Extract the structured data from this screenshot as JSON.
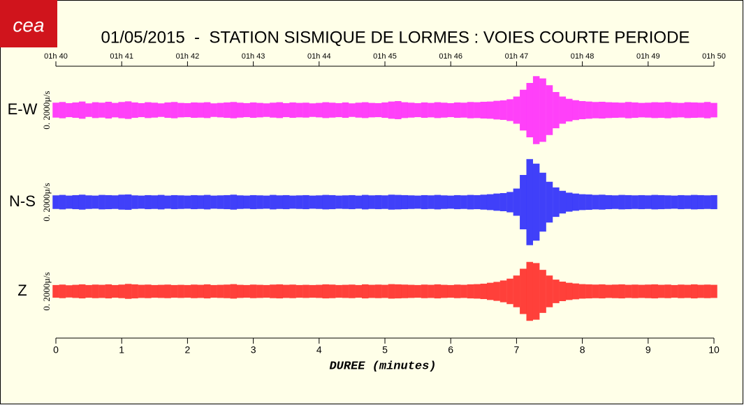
{
  "logo": "cea",
  "chart_data": {
    "type": "seismogram",
    "title": "01/05/2015  -  STATION SISMIQUE DE LORMES : VOIES COURTE PERIODE",
    "xlabel": "DUREE (minutes)",
    "scale_label": "0. 2000µ/s",
    "xlim": [
      0,
      10
    ],
    "xticks": [
      0,
      1,
      2,
      3,
      4,
      5,
      6,
      7,
      8,
      9,
      10
    ],
    "x2ticks": [
      {
        "value": 0,
        "label": "01h 40"
      },
      {
        "value": 1,
        "label": "01h 41"
      },
      {
        "value": 2,
        "label": "01h 42"
      },
      {
        "value": 3,
        "label": "01h 43"
      },
      {
        "value": 4,
        "label": "01h 44"
      },
      {
        "value": 5,
        "label": "01h 45"
      },
      {
        "value": 6,
        "label": "01h 46"
      },
      {
        "value": 7,
        "label": "01h 47"
      },
      {
        "value": 8,
        "label": "01h 48"
      },
      {
        "value": 9,
        "label": "01h 49"
      },
      {
        "value": 10,
        "label": "01h 50"
      }
    ],
    "ylim": [
      -2000,
      2000
    ],
    "x": [
      0,
      0.1,
      0.2,
      0.3,
      0.4,
      0.5,
      0.6,
      0.7,
      0.8,
      0.9,
      1,
      1.1,
      1.2,
      1.3,
      1.4,
      1.5,
      1.6,
      1.7,
      1.8,
      1.9,
      2,
      2.1,
      2.2,
      2.3,
      2.4,
      2.5,
      2.6,
      2.7,
      2.8,
      2.9,
      3,
      3.1,
      3.2,
      3.3,
      3.4,
      3.5,
      3.6,
      3.7,
      3.8,
      3.9,
      4,
      4.1,
      4.2,
      4.3,
      4.4,
      4.5,
      4.6,
      4.7,
      4.8,
      4.9,
      5,
      5.1,
      5.2,
      5.3,
      5.4,
      5.5,
      5.6,
      5.7,
      5.8,
      5.9,
      6,
      6.1,
      6.2,
      6.3,
      6.4,
      6.5,
      6.6,
      6.7,
      6.8,
      6.9,
      7,
      7.1,
      7.2,
      7.3,
      7.4,
      7.5,
      7.6,
      7.7,
      7.8,
      7.9,
      8,
      8.1,
      8.2,
      8.3,
      8.4,
      8.5,
      8.6,
      8.7,
      8.8,
      8.9,
      9,
      9.1,
      9.2,
      9.3,
      9.4,
      9.5,
      9.6,
      9.7,
      9.8,
      9.9,
      10
    ],
    "series": [
      {
        "name": "E-W",
        "color": "#ff00ff",
        "values": [
          330,
          360,
          310,
          340,
          380,
          300,
          350,
          330,
          370,
          320,
          360,
          390,
          340,
          310,
          350,
          330,
          300,
          340,
          360,
          320,
          310,
          340,
          330,
          350,
          300,
          320,
          340,
          360,
          330,
          310,
          340,
          320,
          300,
          330,
          350,
          310,
          340,
          320,
          330,
          300,
          320,
          350,
          330,
          310,
          340,
          300,
          330,
          350,
          320,
          310,
          340,
          380,
          400,
          350,
          330,
          310,
          340,
          320,
          350,
          330,
          310,
          340,
          330,
          360,
          350,
          370,
          380,
          410,
          430,
          480,
          600,
          900,
          1200,
          1500,
          1400,
          1100,
          800,
          600,
          500,
          440,
          400,
          380,
          360,
          370,
          350,
          340,
          330,
          360,
          340,
          320,
          330,
          350,
          340,
          360,
          330,
          320,
          350,
          340,
          330,
          360,
          320
        ]
      },
      {
        "name": "N-S",
        "color": "#0000ff",
        "values": [
          300,
          320,
          290,
          310,
          330,
          300,
          290,
          320,
          310,
          300,
          330,
          340,
          300,
          290,
          310,
          300,
          320,
          290,
          310,
          300,
          290,
          310,
          300,
          320,
          290,
          300,
          310,
          330,
          300,
          290,
          310,
          300,
          290,
          320,
          300,
          310,
          290,
          300,
          310,
          290,
          300,
          320,
          310,
          290,
          300,
          310,
          290,
          320,
          300,
          310,
          300,
          330,
          320,
          310,
          300,
          290,
          310,
          300,
          320,
          300,
          290,
          310,
          300,
          320,
          310,
          330,
          350,
          380,
          400,
          450,
          600,
          1200,
          1900,
          1700,
          1300,
          900,
          650,
          500,
          420,
          380,
          350,
          340,
          320,
          330,
          310,
          300,
          320,
          310,
          300,
          310,
          300,
          320,
          310,
          300,
          290,
          310,
          300,
          320,
          310,
          300,
          310
        ]
      },
      {
        "name": "Z",
        "color": "#ff0000",
        "values": [
          280,
          300,
          270,
          290,
          310,
          280,
          300,
          290,
          310,
          280,
          300,
          330,
          310,
          290,
          300,
          280,
          290,
          300,
          280,
          290,
          280,
          300,
          290,
          310,
          280,
          290,
          300,
          320,
          290,
          280,
          300,
          290,
          280,
          300,
          310,
          290,
          300,
          280,
          290,
          280,
          290,
          310,
          300,
          280,
          290,
          300,
          280,
          310,
          290,
          300,
          290,
          320,
          310,
          300,
          290,
          280,
          300,
          290,
          310,
          290,
          280,
          300,
          290,
          310,
          320,
          340,
          380,
          420,
          480,
          560,
          700,
          1000,
          1300,
          1250,
          950,
          700,
          520,
          430,
          380,
          350,
          320,
          310,
          300,
          310,
          290,
          300,
          310,
          290,
          300,
          290,
          300,
          310,
          290,
          300,
          280,
          300,
          290,
          310,
          290,
          300,
          290
        ]
      }
    ]
  }
}
